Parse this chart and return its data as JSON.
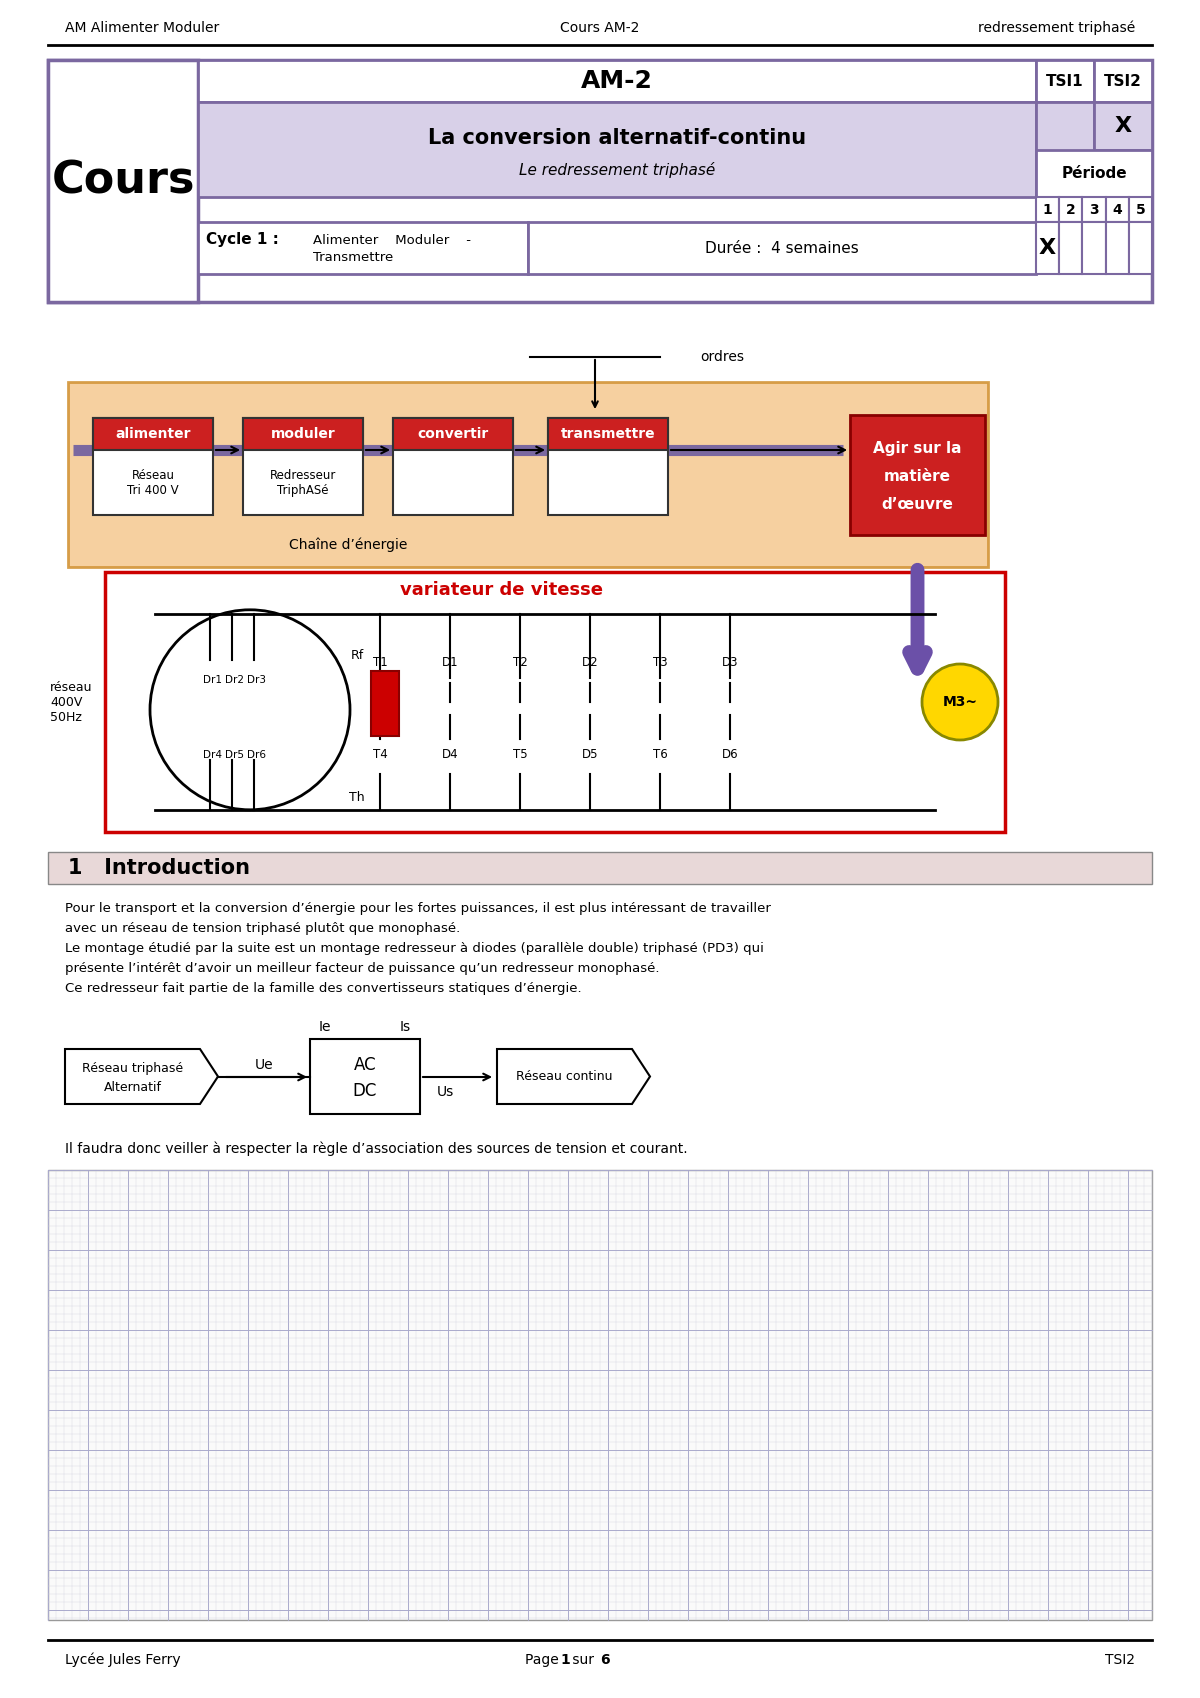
{
  "header_left": "AM Alimenter Moduler",
  "header_center": "Cours AM-2",
  "header_right": "redressement triphasé",
  "footer_left": "Lycée Jules Ferry",
  "footer_center_pre": "Page ",
  "footer_center_bold": "1",
  "footer_center_mid": " sur ",
  "footer_center_bold2": "6",
  "footer_right": "TSI2",
  "table_title": "AM-2",
  "table_tsi1": "TSI1",
  "table_tsi2": "TSI2",
  "table_cours": "Cours",
  "table_subtitle1": "La conversion alternatif-continu",
  "table_subtitle2": "Le redressement triphasé",
  "table_x_tsi2": "X",
  "table_periode": "Période",
  "table_periods": [
    "1",
    "2",
    "3",
    "4",
    "5"
  ],
  "table_cycle": "Cycle 1 :",
  "table_duree": "Durée :  4 semaines",
  "table_cycle_x": "X",
  "section1_title": "1   Introduction",
  "body_line1a": "Pour le transport et la conversion d’énergie pour les fortes puissances, il est plus intéressant de travailler",
  "body_line1b": "avec un réseau de tension triphasé plutôt que monophasé.",
  "body_line2a": "Le montage étudié par la suite est un montage redresseur à diodes (parallèle double) triphasé (PD3) qui",
  "body_line2b": "présente l’intérêt d’avoir un meilleur facteur de puissance qu’un redresseur monophasé.",
  "body_line3": "Ce redresseur fait partie de la famille des convertisseurs statiques d’énergie.",
  "assoc_text": "Il faudra donc veiller à respecter la règle d’association des sources de tension et courant.",
  "purple": "#7B68A0",
  "lavender": "#D8D0E8",
  "chain_bg": "#F5C890",
  "red_block": "#CC2020",
  "agir_purple": "#6B50A8",
  "red_circuit": "#CC0000",
  "section_bg": "#E8D8D8",
  "grid_bg": "#FAFAFA",
  "grid_line_minor": "#CCCCDD",
  "grid_line_major": "#AAAACC",
  "motor_gold": "#FFD700",
  "rf_red": "#CC0000"
}
